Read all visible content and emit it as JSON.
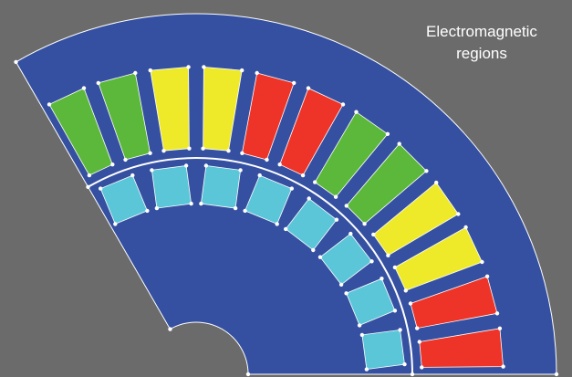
{
  "annotation": {
    "lines": [
      "Electromagnetic",
      "regions"
    ]
  }
}
